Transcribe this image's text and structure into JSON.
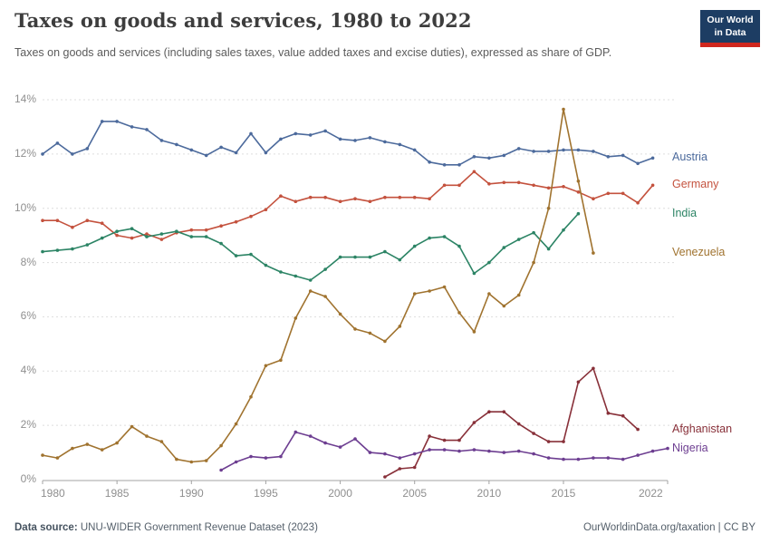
{
  "header": {
    "title": "Taxes on goods and services, 1980 to 2022",
    "subtitle": "Taxes on goods and services (including sales taxes, value added taxes and excise duties), expressed as share of GDP.",
    "logo_line1": "Our World",
    "logo_line2": "in Data",
    "logo_bg": "#1d3d63",
    "logo_underline": "#d0271e"
  },
  "footer": {
    "source_label": "Data source:",
    "source_text": " UNU-WIDER Government Revenue Dataset (2023)",
    "credit": "OurWorldinData.org/taxation | CC BY"
  },
  "chart_data": {
    "type": "line",
    "title": "Taxes on goods and services, 1980 to 2022",
    "unit": "%",
    "xlim": [
      1980,
      2022
    ],
    "ylim": [
      0,
      14
    ],
    "x_ticks": [
      1980,
      1985,
      1990,
      1995,
      2000,
      2005,
      2010,
      2015,
      2022
    ],
    "y_ticks": [
      0,
      2,
      4,
      6,
      8,
      10,
      12,
      14
    ],
    "grid": "horizontal-dashed",
    "legend_position": "right-edge-labels",
    "gridline_color": "#dddddd",
    "axis_color": "#a3a3a3",
    "tick_label_color": "#8f8f8f",
    "series": [
      {
        "name": "Austria",
        "color": "#4C6A9C",
        "start_year": 1980,
        "values": [
          12.0,
          12.4,
          12.0,
          12.2,
          13.2,
          13.2,
          13.0,
          12.9,
          12.5,
          12.35,
          12.15,
          11.95,
          12.25,
          12.05,
          12.75,
          12.05,
          12.55,
          12.75,
          12.7,
          12.85,
          12.55,
          12.5,
          12.6,
          12.45,
          12.35,
          12.15,
          11.7,
          11.6,
          11.6,
          11.9,
          11.85,
          11.95,
          12.2,
          12.1,
          12.1,
          12.15,
          12.15,
          12.1,
          11.9,
          11.95,
          11.65,
          11.85
        ]
      },
      {
        "name": "Germany",
        "color": "#C4523E",
        "start_year": 1980,
        "values": [
          9.55,
          9.55,
          9.3,
          9.55,
          9.45,
          9.0,
          8.9,
          9.05,
          8.85,
          9.1,
          9.2,
          9.2,
          9.35,
          9.5,
          9.7,
          9.95,
          10.45,
          10.25,
          10.4,
          10.4,
          10.25,
          10.35,
          10.25,
          10.4,
          10.4,
          10.4,
          10.35,
          10.85,
          10.85,
          11.35,
          10.9,
          10.95,
          10.95,
          10.85,
          10.75,
          10.8,
          10.6,
          10.35,
          10.55,
          10.55,
          10.2,
          10.85
        ]
      },
      {
        "name": "India",
        "color": "#2C8465",
        "start_year": 1980,
        "values": [
          8.4,
          8.45,
          8.5,
          8.65,
          8.9,
          9.15,
          9.25,
          8.95,
          9.05,
          9.15,
          8.95,
          8.95,
          8.7,
          8.25,
          8.3,
          7.9,
          7.65,
          7.5,
          7.35,
          7.75,
          8.2,
          8.2,
          8.2,
          8.4,
          8.1,
          8.6,
          8.9,
          8.95,
          8.6,
          7.6,
          8.0,
          8.55,
          8.85,
          9.1,
          8.5,
          9.2,
          9.8
        ]
      },
      {
        "name": "Venezuela",
        "color": "#A0732F",
        "start_year": 1980,
        "values": [
          0.9,
          0.8,
          1.15,
          1.3,
          1.1,
          1.35,
          1.95,
          1.6,
          1.4,
          0.75,
          0.65,
          0.7,
          1.25,
          2.05,
          3.05,
          4.2,
          4.4,
          5.95,
          6.95,
          6.75,
          6.1,
          5.55,
          5.4,
          5.1,
          5.65,
          6.85,
          6.95,
          7.1,
          6.15,
          5.45,
          6.85,
          6.4,
          6.8,
          8.0,
          10.0,
          13.65,
          11.0,
          8.35
        ]
      },
      {
        "name": "Afghanistan",
        "color": "#883039",
        "start_year": 2003,
        "values": [
          0.1,
          0.4,
          0.45,
          1.6,
          1.45,
          1.45,
          2.1,
          2.5,
          2.5,
          2.05,
          1.7,
          1.4,
          1.4,
          3.6,
          4.1,
          2.45,
          2.35,
          1.85
        ]
      },
      {
        "name": "Nigeria",
        "color": "#6D3E91",
        "start_year": 1992,
        "values": [
          0.35,
          0.65,
          0.85,
          0.8,
          0.85,
          1.75,
          1.6,
          1.35,
          1.2,
          1.5,
          1.0,
          0.95,
          0.8,
          0.95,
          1.1,
          1.1,
          1.05,
          1.1,
          1.05,
          1.0,
          1.05,
          0.95,
          0.8,
          0.75,
          0.75,
          0.8,
          0.8,
          0.75,
          0.9,
          1.05,
          1.15
        ]
      }
    ]
  }
}
